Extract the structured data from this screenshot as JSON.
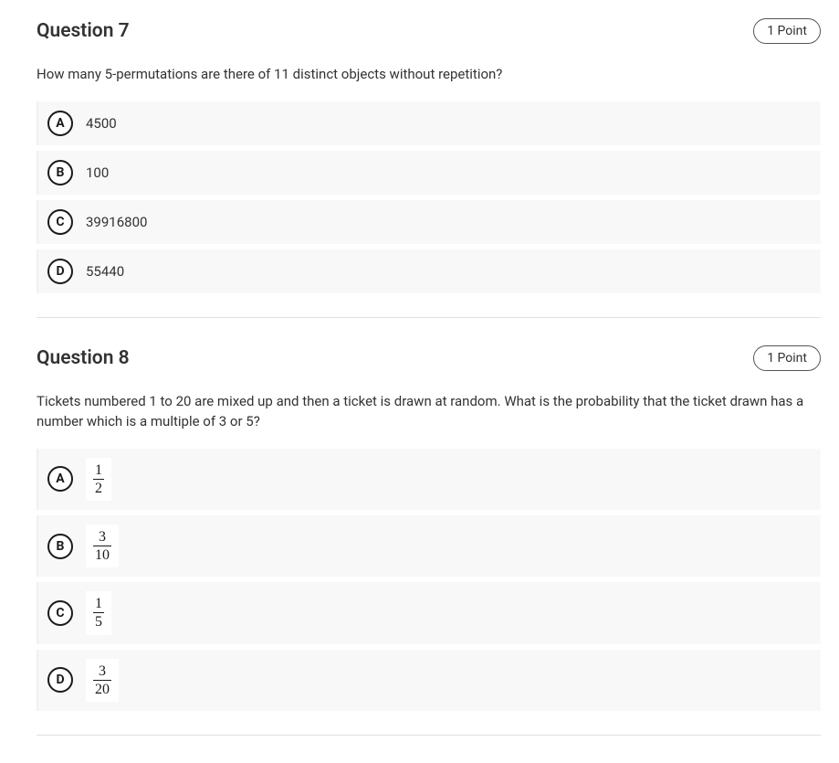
{
  "questions": [
    {
      "title": "Question 7",
      "points": "1 Point",
      "text": "How many 5-permutations are there of 11 distinct objects without repetition?",
      "options": [
        {
          "letter": "A",
          "type": "text",
          "value": "4500"
        },
        {
          "letter": "B",
          "type": "text",
          "value": "100"
        },
        {
          "letter": "C",
          "type": "text",
          "value": "39916800"
        },
        {
          "letter": "D",
          "type": "text",
          "value": "55440"
        }
      ]
    },
    {
      "title": "Question 8",
      "points": "1 Point",
      "text": "Tickets numbered 1 to 20 are mixed up and then a ticket is drawn at random. What is the probability that the ticket drawn has a number which is a multiple of 3 or 5?",
      "options": [
        {
          "letter": "A",
          "type": "fraction",
          "num": "1",
          "den": "2"
        },
        {
          "letter": "B",
          "type": "fraction",
          "num": "3",
          "den": "10"
        },
        {
          "letter": "C",
          "type": "fraction",
          "num": "1",
          "den": "5"
        },
        {
          "letter": "D",
          "type": "fraction",
          "num": "3",
          "den": "20"
        }
      ]
    }
  ],
  "colors": {
    "text": "#333333",
    "border": "#1a1a1a",
    "option_bg": "#f8f8f8",
    "divider": "#e0e0e0",
    "background": "#ffffff"
  }
}
